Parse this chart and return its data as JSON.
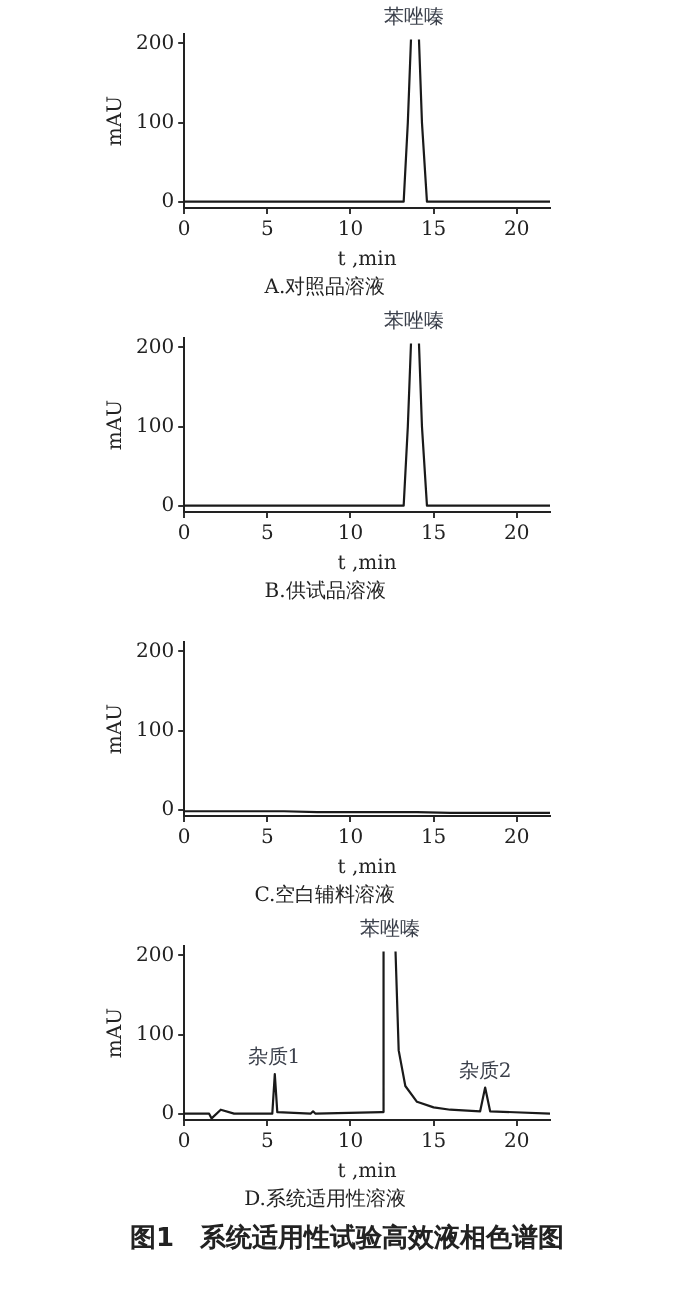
{
  "chart_data": [
    {
      "type": "line",
      "title": "A.对照品溶液",
      "xlabel": "t ,min",
      "ylabel": "mAU",
      "xlim": [
        0,
        22
      ],
      "xticks": [
        0,
        5,
        10,
        15,
        20
      ],
      "ylim": [
        -8,
        212
      ],
      "yticks": [
        0,
        100,
        200
      ],
      "grid": false,
      "legend": false,
      "marker": "none",
      "series": [
        {
          "color": "#1a1a1a",
          "x": [
            0,
            13.2,
            13.45,
            13.64,
            13.85,
            14.12,
            14.3,
            14.6,
            22
          ],
          "values": [
            0,
            0,
            100,
            205,
            null,
            205,
            100,
            0,
            0
          ]
        }
      ],
      "annotations": [
        {
          "text": "苯唑嗪",
          "x": 13.85,
          "y": 212
        }
      ]
    },
    {
      "type": "line",
      "title": "B.供试品溶液",
      "xlabel": "t ,min",
      "ylabel": "mAU",
      "xlim": [
        0,
        22
      ],
      "xticks": [
        0,
        5,
        10,
        15,
        20
      ],
      "ylim": [
        -8,
        212
      ],
      "yticks": [
        0,
        100,
        200
      ],
      "grid": false,
      "legend": false,
      "marker": "none",
      "series": [
        {
          "color": "#1a1a1a",
          "x": [
            0,
            13.2,
            13.45,
            13.64,
            13.85,
            14.12,
            14.3,
            14.6,
            22
          ],
          "values": [
            0,
            0,
            100,
            205,
            null,
            205,
            100,
            0,
            0
          ]
        }
      ],
      "annotations": [
        {
          "text": "苯唑嗪",
          "x": 13.85,
          "y": 212
        }
      ]
    },
    {
      "type": "line",
      "title": "C.空白辅料溶液",
      "xlabel": "t ,min",
      "ylabel": "mAU",
      "xlim": [
        0,
        22
      ],
      "xticks": [
        0,
        5,
        10,
        15,
        20
      ],
      "ylim": [
        -8,
        212
      ],
      "yticks": [
        0,
        100,
        200
      ],
      "grid": false,
      "legend": false,
      "marker": "none",
      "series": [
        {
          "color": "#1a1a1a",
          "x": [
            0,
            2,
            4,
            6,
            8,
            10,
            12,
            14,
            16,
            18,
            20,
            22
          ],
          "values": [
            -2,
            -2,
            -2,
            -2,
            -3,
            -3,
            -3,
            -3,
            -4,
            -4,
            -4,
            -4
          ]
        }
      ]
    },
    {
      "type": "line",
      "title": "D.系统适用性溶液",
      "xlabel": "t ,min",
      "ylabel": "mAU",
      "xlim": [
        0,
        22
      ],
      "xticks": [
        0,
        5,
        10,
        15,
        20
      ],
      "ylim": [
        -8,
        212
      ],
      "yticks": [
        0,
        100,
        200
      ],
      "grid": false,
      "legend": false,
      "marker": "none",
      "series": [
        {
          "color": "#1a1a1a",
          "x": [
            0,
            1.5,
            1.65,
            2.2,
            3,
            5.3,
            5.45,
            5.6,
            7.6,
            7.75,
            7.9,
            11.9,
            11.99,
            12.35,
            12.71,
            12.9,
            13.3,
            14,
            15,
            16,
            17.8,
            18.1,
            18.4,
            22
          ],
          "values": [
            0,
            0,
            -6,
            5,
            0,
            0,
            50,
            2,
            0,
            3,
            0,
            2,
            205,
            null,
            205,
            80,
            35,
            15,
            8,
            5,
            3,
            33,
            3,
            0
          ]
        }
      ],
      "annotations": [
        {
          "text": "杂质1",
          "x": 5.4,
          "y": 50
        },
        {
          "text": "苯唑嗪",
          "x": 12.35,
          "y": 212
        },
        {
          "text": "杂质2",
          "x": 18.1,
          "y": 33
        },
        "图1　系统适用性试验高效液相色谱图"
      ]
    }
  ]
}
